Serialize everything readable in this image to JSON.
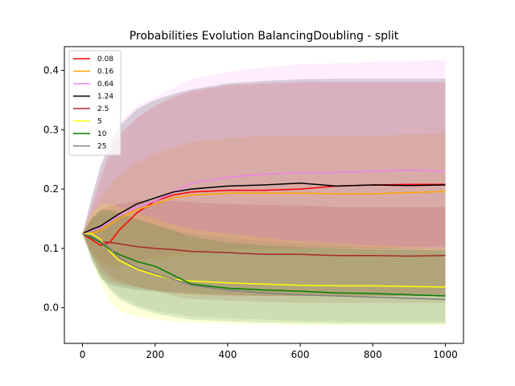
{
  "chart_data": {
    "type": "line",
    "title": "Probabilities Evolution BalancingDoubling  - split",
    "xlabel": "",
    "ylabel": "",
    "xlim": [
      -50,
      1050
    ],
    "ylim": [
      -0.06,
      0.44
    ],
    "xticks": [
      0,
      200,
      400,
      600,
      800,
      1000
    ],
    "yticks": [
      0.0,
      0.1,
      0.2,
      0.3,
      0.4
    ],
    "xtick_labels": [
      "0",
      "200",
      "400",
      "600",
      "800",
      "1000"
    ],
    "ytick_labels": [
      "0.0",
      "0.1",
      "0.2",
      "0.3",
      "0.4"
    ],
    "grid": false,
    "legend_position": "top-left",
    "x": [
      0,
      25,
      50,
      75,
      100,
      150,
      200,
      250,
      300,
      400,
      500,
      600,
      700,
      800,
      900,
      1000
    ],
    "series": [
      {
        "name": "0.08",
        "color": "#ff0000",
        "values": [
          0.125,
          0.115,
          0.105,
          0.11,
          0.13,
          0.16,
          0.18,
          0.19,
          0.195,
          0.198,
          0.198,
          0.2,
          0.205,
          0.207,
          0.208,
          0.208
        ],
        "band": {
          "lower": [
            0.125,
            0.09,
            0.06,
            0.045,
            0.04,
            0.035,
            0.03,
            0.025,
            0.022,
            0.02,
            0.02,
            0.02,
            0.02,
            0.02,
            0.02,
            0.02
          ],
          "upper": [
            0.125,
            0.17,
            0.22,
            0.26,
            0.29,
            0.32,
            0.34,
            0.355,
            0.365,
            0.375,
            0.378,
            0.38,
            0.38,
            0.38,
            0.38,
            0.38
          ]
        }
      },
      {
        "name": "0.16",
        "color": "#ffa500",
        "values": [
          0.125,
          0.125,
          0.13,
          0.14,
          0.15,
          0.165,
          0.175,
          0.185,
          0.19,
          0.193,
          0.193,
          0.193,
          0.192,
          0.192,
          0.194,
          0.196
        ],
        "band": {
          "lower": [
            0.125,
            0.095,
            0.075,
            0.07,
            0.07,
            0.075,
            0.08,
            0.085,
            0.09,
            0.095,
            0.098,
            0.1,
            0.1,
            0.1,
            0.102,
            0.105
          ],
          "upper": [
            0.125,
            0.16,
            0.185,
            0.21,
            0.225,
            0.245,
            0.26,
            0.27,
            0.28,
            0.285,
            0.29,
            0.29,
            0.29,
            0.29,
            0.292,
            0.295
          ]
        }
      },
      {
        "name": "0.64",
        "color": "#ee82ee",
        "values": [
          0.125,
          0.13,
          0.135,
          0.145,
          0.155,
          0.17,
          0.18,
          0.195,
          0.21,
          0.22,
          0.225,
          0.228,
          0.228,
          0.23,
          0.232,
          0.23
        ],
        "band": {
          "lower": [
            0.125,
            0.095,
            0.08,
            0.075,
            0.075,
            0.08,
            0.085,
            0.09,
            0.095,
            0.098,
            0.1,
            0.1,
            0.1,
            0.1,
            0.1,
            0.1
          ],
          "upper": [
            0.125,
            0.185,
            0.24,
            0.28,
            0.31,
            0.34,
            0.355,
            0.37,
            0.385,
            0.398,
            0.405,
            0.41,
            0.412,
            0.414,
            0.416,
            0.417
          ]
        }
      },
      {
        "name": "1.24",
        "color": "#000000",
        "values": [
          0.125,
          0.132,
          0.138,
          0.148,
          0.158,
          0.175,
          0.185,
          0.195,
          0.2,
          0.205,
          0.207,
          0.21,
          0.205,
          0.207,
          0.206,
          0.207
        ],
        "band": {
          "lower": [
            0.125,
            0.08,
            0.05,
            0.04,
            0.035,
            0.03,
            0.028,
            0.026,
            0.024,
            0.022,
            0.02,
            0.02,
            0.02,
            0.02,
            0.02,
            0.02
          ],
          "upper": [
            0.125,
            0.185,
            0.24,
            0.275,
            0.305,
            0.335,
            0.35,
            0.36,
            0.368,
            0.378,
            0.382,
            0.385,
            0.386,
            0.386,
            0.386,
            0.386
          ]
        }
      },
      {
        "name": "2.5",
        "color": "#a52a2a",
        "values": [
          0.125,
          0.12,
          0.112,
          0.11,
          0.108,
          0.103,
          0.1,
          0.098,
          0.095,
          0.093,
          0.09,
          0.09,
          0.088,
          0.088,
          0.087,
          0.088
        ],
        "band": {
          "lower": [
            0.125,
            0.09,
            0.07,
            0.055,
            0.045,
            0.035,
            0.028,
            0.02,
            0.015,
            0.012,
            0.01,
            0.008,
            0.008,
            0.008,
            0.008,
            0.008
          ],
          "upper": [
            0.125,
            0.15,
            0.165,
            0.17,
            0.175,
            0.18,
            0.18,
            0.18,
            0.178,
            0.175,
            0.173,
            0.172,
            0.17,
            0.17,
            0.17,
            0.17
          ]
        }
      },
      {
        "name": "5",
        "color": "#ffff00",
        "values": [
          0.125,
          0.125,
          0.115,
          0.095,
          0.08,
          0.065,
          0.055,
          0.048,
          0.045,
          0.042,
          0.04,
          0.038,
          0.037,
          0.037,
          0.036,
          0.035
        ],
        "band": {
          "lower": [
            0.125,
            0.08,
            0.04,
            0.01,
            -0.005,
            -0.015,
            -0.02,
            -0.023,
            -0.025,
            -0.027,
            -0.028,
            -0.029,
            -0.03,
            -0.03,
            -0.03,
            -0.03
          ],
          "upper": [
            0.125,
            0.16,
            0.175,
            0.175,
            0.17,
            0.16,
            0.15,
            0.14,
            0.132,
            0.125,
            0.118,
            0.112,
            0.108,
            0.105,
            0.103,
            0.102
          ]
        }
      },
      {
        "name": "10",
        "color": "#008000",
        "values": [
          0.125,
          0.118,
          0.11,
          0.098,
          0.09,
          0.078,
          0.07,
          0.055,
          0.04,
          0.033,
          0.03,
          0.028,
          0.025,
          0.024,
          0.022,
          0.02
        ],
        "band": {
          "lower": [
            0.125,
            0.085,
            0.05,
            0.03,
            0.015,
            0.0,
            -0.01,
            -0.015,
            -0.02,
            -0.023,
            -0.025,
            -0.026,
            -0.027,
            -0.027,
            -0.027,
            -0.027
          ],
          "upper": [
            0.125,
            0.15,
            0.165,
            0.165,
            0.16,
            0.15,
            0.14,
            0.13,
            0.12,
            0.11,
            0.105,
            0.102,
            0.1,
            0.098,
            0.097,
            0.096
          ]
        }
      },
      {
        "name": "25",
        "color": "#808080",
        "values": [
          0.125,
          0.12,
          0.112,
          0.1,
          0.085,
          0.068,
          0.058,
          0.048,
          0.038,
          0.03,
          0.025,
          0.022,
          0.02,
          0.018,
          0.016,
          0.014
        ],
        "band": {
          "lower": [
            0.125,
            0.085,
            0.055,
            0.035,
            0.02,
            0.005,
            -0.005,
            -0.01,
            -0.015,
            -0.018,
            -0.02,
            -0.022,
            -0.023,
            -0.024,
            -0.024,
            -0.024
          ],
          "upper": [
            0.125,
            0.15,
            0.162,
            0.162,
            0.158,
            0.148,
            0.14,
            0.132,
            0.125,
            0.118,
            0.112,
            0.108,
            0.105,
            0.102,
            0.1,
            0.098
          ]
        }
      }
    ]
  }
}
